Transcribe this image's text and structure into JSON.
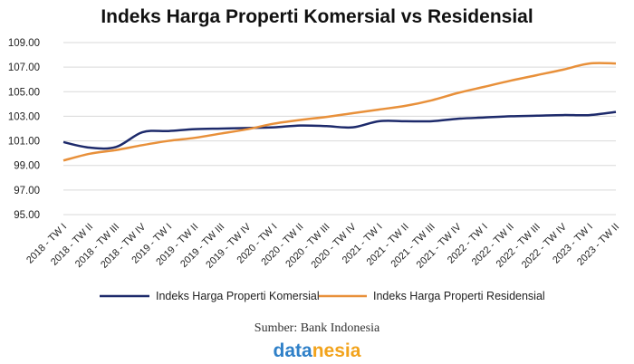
{
  "chart_data": {
    "type": "line",
    "title": "Indeks Harga Properti Komersial vs Residensial",
    "xlabel": "",
    "ylabel": "",
    "ylim": [
      95,
      109
    ],
    "yticks": [
      "109.00",
      "107.00",
      "105.00",
      "103.00",
      "101.00",
      "99.00",
      "97.00",
      "95.00"
    ],
    "categories": [
      "2018 - TW I",
      "2018 - TW II",
      "2018 - TW III",
      "2018 - TW IV",
      "2019 - TW I",
      "2019 - TW II",
      "2019 - TW III",
      "2019 - TW IV",
      "2020 - TW I",
      "2020 - TW II",
      "2020 - TW III",
      "2020 - TW IV",
      "2021 - TW I",
      "2021 - TW II",
      "2021 - TW III",
      "2021 - TW IV",
      "2022 - TW I",
      "2022 - TW II",
      "2022 - TW III",
      "2022 - TW IV",
      "2023 - TW I",
      "2023 - TW II"
    ],
    "grid": "horizontal",
    "legend": "bottom",
    "series": [
      {
        "name": "Indeks Harga Properti Komersial",
        "color": "#1d2a6b",
        "values": [
          100.9,
          100.45,
          100.5,
          101.7,
          101.8,
          101.95,
          102.0,
          102.05,
          102.1,
          102.25,
          102.2,
          102.1,
          102.6,
          102.6,
          102.6,
          102.8,
          102.9,
          103.0,
          103.05,
          103.1,
          103.1,
          103.35
        ]
      },
      {
        "name": "Indeks Harga Properti Residensial",
        "color": "#e8903a",
        "values": [
          99.4,
          99.95,
          100.25,
          100.65,
          101.0,
          101.25,
          101.6,
          101.95,
          102.4,
          102.7,
          102.95,
          103.25,
          103.55,
          103.85,
          104.3,
          104.9,
          105.4,
          105.9,
          106.35,
          106.8,
          107.3,
          107.3
        ]
      }
    ]
  },
  "source": "Sumber: Bank Indonesia",
  "logo": {
    "part1": "data",
    "part2": "nesia"
  }
}
